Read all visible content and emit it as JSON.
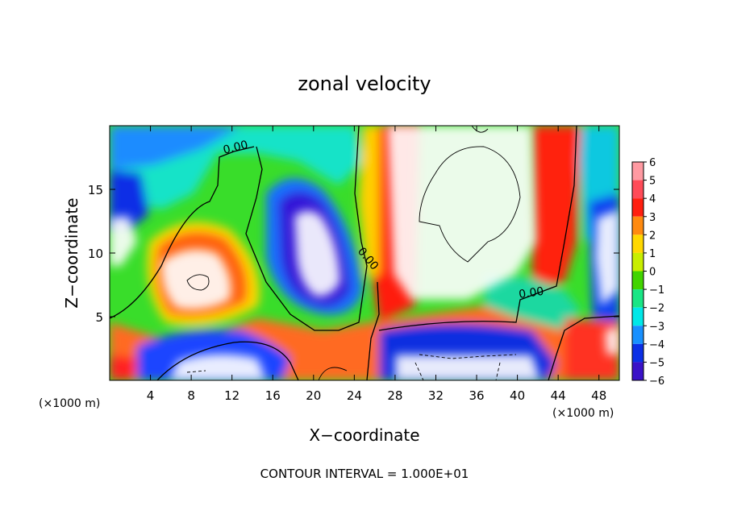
{
  "chart_data": {
    "type": "heatmap",
    "title": "zonal velocity",
    "xlabel": "X−coordinate",
    "ylabel": "Z−coordinate",
    "x_unit_left": "(×1000 m)",
    "x_unit_right": "(×1000 m)",
    "xlim": [
      0,
      50
    ],
    "ylim": [
      0,
      20
    ],
    "x_ticks": [
      4,
      8,
      12,
      16,
      20,
      24,
      28,
      32,
      36,
      40,
      44,
      48
    ],
    "y_ticks": [
      5,
      10,
      15
    ],
    "colorbar": {
      "levels": [
        "6",
        "5",
        "4",
        "3",
        "2",
        "1",
        "0",
        "−1",
        "−2",
        "−3",
        "−4",
        "−5",
        "−6"
      ],
      "colors": [
        "#ff9aa2",
        "#ff4b58",
        "#ff1f10",
        "#ff8a10",
        "#ffd800",
        "#c8ee00",
        "#42d400",
        "#19e685",
        "#00e8e8",
        "#1890ff",
        "#0b2fe6",
        "#3a12c8",
        "#8012b8"
      ],
      "above_range_color": "#ffffff"
    },
    "contour_labels": [
      "0.00",
      "0.00",
      "0.00"
    ],
    "annotation": "CONTOUR INTERVAL = 1.000E+01"
  }
}
